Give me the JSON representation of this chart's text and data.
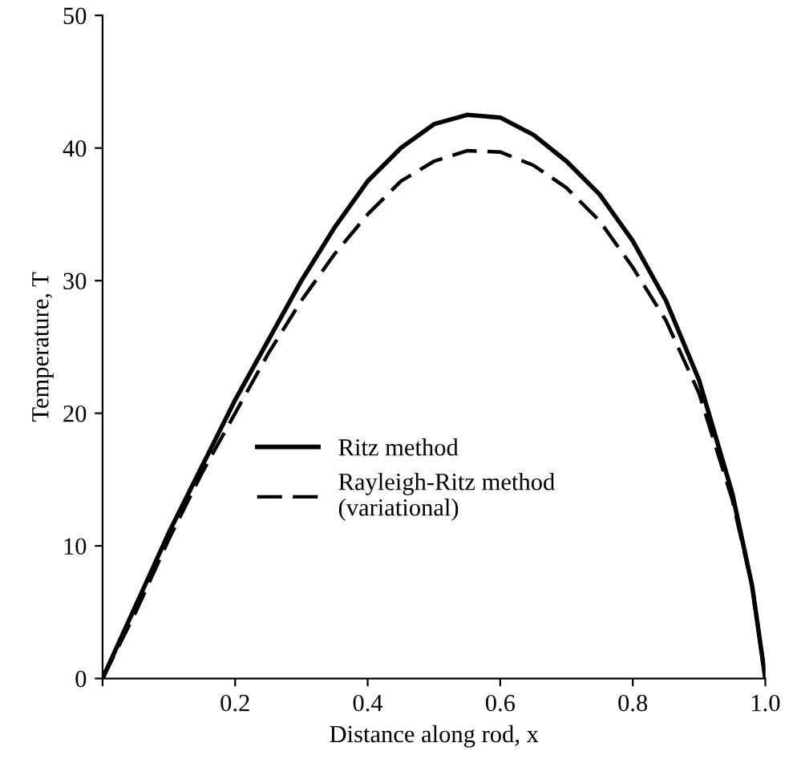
{
  "chart_data": {
    "type": "line",
    "xlabel": "Distance along rod, x",
    "ylabel": "Temperature, T",
    "x": [
      0,
      0.05,
      0.1,
      0.15,
      0.2,
      0.25,
      0.3,
      0.35,
      0.4,
      0.45,
      0.5,
      0.55,
      0.6,
      0.65,
      0.7,
      0.75,
      0.8,
      0.85,
      0.9,
      0.95,
      0.98,
      1.0
    ],
    "series": [
      {
        "name": "Ritz method",
        "color": "#000000",
        "line_style": "solid",
        "values": [
          0,
          5.5,
          11,
          16,
          21,
          25.5,
          30,
          34,
          37.5,
          40,
          41.8,
          42.5,
          42.3,
          41,
          39,
          36.5,
          33,
          28.5,
          22.5,
          14,
          7,
          0
        ]
      },
      {
        "name": "Rayleigh-Ritz method\n(variational)",
        "color": "#000000",
        "line_style": "dashed",
        "values": [
          0,
          5,
          10.5,
          15.5,
          20,
          24.5,
          28.5,
          32,
          35,
          37.5,
          39,
          39.8,
          39.7,
          38.7,
          37,
          34.5,
          31,
          27,
          21.5,
          13.5,
          7,
          0
        ]
      }
    ],
    "xlim": [
      0,
      1.0
    ],
    "ylim": [
      0,
      50
    ],
    "xticks": [
      {
        "value": 0,
        "label": null
      },
      0.2,
      0.4,
      0.6,
      0.8,
      {
        "value": 1.0,
        "label": "1.0"
      }
    ],
    "yticks": [
      0,
      10,
      20,
      30,
      40,
      50
    ],
    "grid": false,
    "legend": "center left"
  }
}
